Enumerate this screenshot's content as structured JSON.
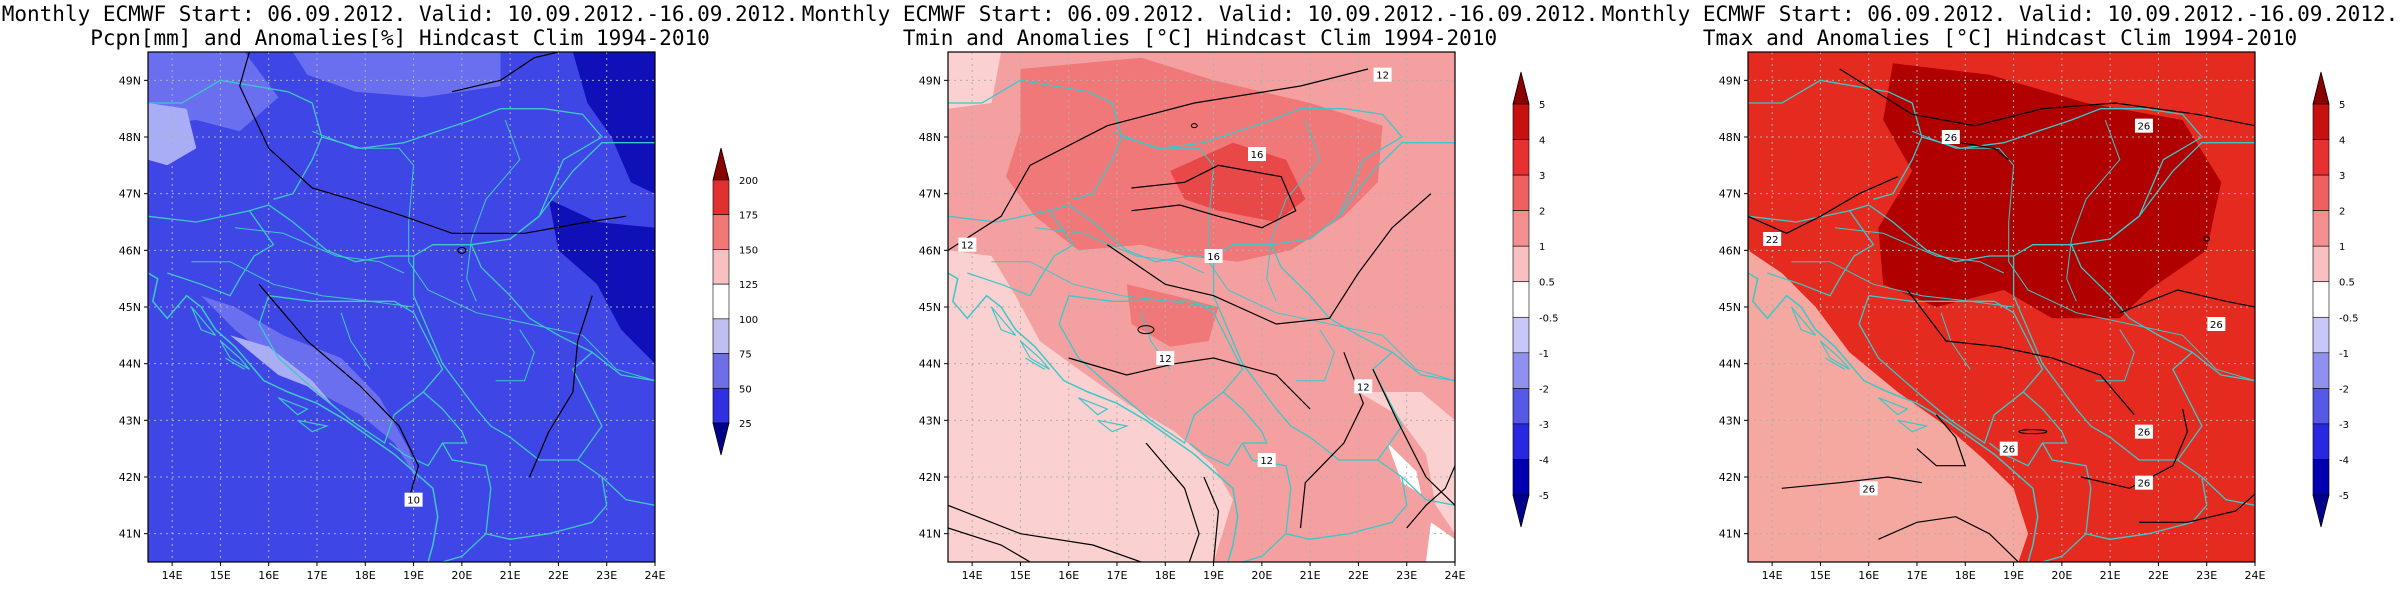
{
  "panels": [
    {
      "title_line1": "Monthly ECMWF Start: 06.09.2012. Valid: 10.09.2012.-16.09.2012.",
      "title_line2": "Pcpn[mm] and Anomalies[%] Hindcast Clim 1994-2010",
      "variable": "precipitation",
      "colorbar": {
        "labels": [
          "200",
          "175",
          "150",
          "125",
          "100",
          "75",
          "50",
          "25"
        ],
        "colors": [
          "#8b0000",
          "#e03030",
          "#f07878",
          "#f8c0c0",
          "#ffffff",
          "#c0c0f0",
          "#6e6ee8",
          "#3030e0",
          "#00008b"
        ]
      },
      "contour_labels": [
        "10"
      ],
      "map_colors": {
        "base": "#3f46e6",
        "light": "#6a6ff0",
        "lighter": "#a9adf5",
        "dark": "#1010b8"
      }
    },
    {
      "title_line1": "Monthly ECMWF Start: 06.09.2012. Valid: 10.09.2012.-16.09.2012.",
      "title_line2": "Tmin and Anomalies [°C] Hindcast Clim 1994-2010",
      "variable": "tmin",
      "colorbar": {
        "labels": [
          "5",
          "4",
          "3",
          "2",
          "1",
          "0.5",
          "-0.5",
          "-1",
          "-2",
          "-3",
          "-4",
          "-5"
        ],
        "colors": [
          "#8b0000",
          "#c81010",
          "#e83030",
          "#f06060",
          "#f49090",
          "#f8c0c0",
          "#ffffff",
          "#c8c8f8",
          "#9090f0",
          "#5858e8",
          "#2828e0",
          "#0000b0",
          "#00008b"
        ]
      },
      "contour_labels": [
        "12",
        "16",
        "12",
        "16",
        "12",
        "12",
        "12"
      ],
      "map_colors": {
        "base": "#f5a0a0",
        "mid": "#f07878",
        "hot": "#e84848",
        "pale": "#fad0d0",
        "white": "#ffffff"
      }
    },
    {
      "title_line1": "Monthly ECMWF Start: 06.09.2012. Valid: 10.09.2012.-16.09.2012.",
      "title_line2": "Tmax and Anomalies [°C] Hindcast Clim 1994-2010",
      "variable": "tmax",
      "colorbar": {
        "labels": [
          "5",
          "4",
          "3",
          "2",
          "1",
          "0.5",
          "-0.5",
          "-1",
          "-2",
          "-3",
          "-4",
          "-5"
        ],
        "colors": [
          "#8b0000",
          "#c81010",
          "#e83030",
          "#f06060",
          "#f49090",
          "#f8c0c0",
          "#ffffff",
          "#c8c8f8",
          "#9090f0",
          "#5858e8",
          "#2828e0",
          "#0000b0",
          "#00008b"
        ]
      },
      "contour_labels": [
        "26",
        "26",
        "22",
        "26",
        "26",
        "26",
        "26",
        "26"
      ],
      "map_colors": {
        "base": "#e52a1f",
        "dark": "#b00000",
        "pale": "#f5a8a0"
      }
    }
  ],
  "axes": {
    "lat_labels": [
      "49N",
      "48N",
      "47N",
      "46N",
      "45N",
      "44N",
      "43N",
      "42N",
      "41N"
    ],
    "lon_labels": [
      "14E",
      "15E",
      "16E",
      "17E",
      "18E",
      "19E",
      "20E",
      "21E",
      "22E",
      "23E",
      "24E"
    ]
  },
  "colors": {
    "border": "#3cc8c8",
    "contour": "#000000",
    "grid": "#b0b0b0"
  }
}
